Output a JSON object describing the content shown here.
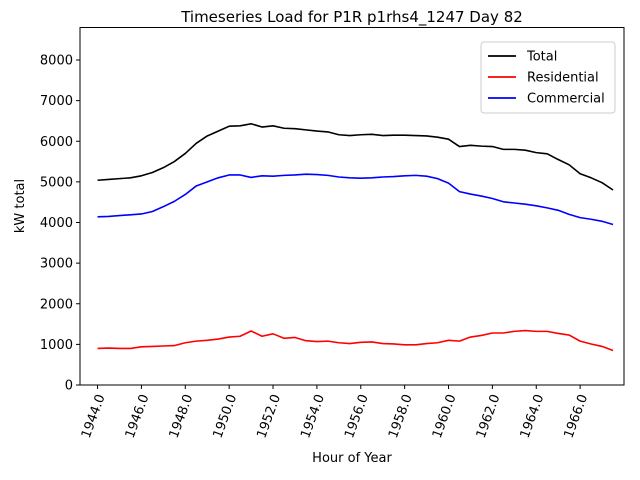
{
  "chart_data": {
    "type": "line",
    "title": "Timeseries Load for P1R p1rhs4_1247  Day 82",
    "xlabel": "Hour of Year",
    "ylabel": "kW total",
    "xlim": [
      1943.2,
      1968.0
    ],
    "ylim": [
      0,
      8800
    ],
    "xticks": [
      1944,
      1946,
      1948,
      1950,
      1952,
      1954,
      1956,
      1958,
      1960,
      1962,
      1964,
      1966
    ],
    "xtick_labels": [
      "1944.0",
      "1946.0",
      "1948.0",
      "1950.0",
      "1952.0",
      "1954.0",
      "1956.0",
      "1958.0",
      "1960.0",
      "1962.0",
      "1964.0",
      "1966.0"
    ],
    "yticks": [
      0,
      1000,
      2000,
      3000,
      4000,
      5000,
      6000,
      7000,
      8000
    ],
    "ytick_labels": [
      "0",
      "1000",
      "2000",
      "3000",
      "4000",
      "5000",
      "6000",
      "7000",
      "8000"
    ],
    "legend_position": "top-right",
    "series": [
      {
        "name": "Total",
        "color": "#000000",
        "x": [
          1944.0,
          1944.5,
          1945.0,
          1945.5,
          1946.0,
          1946.5,
          1947.0,
          1947.5,
          1948.0,
          1948.5,
          1949.0,
          1949.5,
          1950.0,
          1950.5,
          1951.0,
          1951.5,
          1952.0,
          1952.5,
          1953.0,
          1953.5,
          1954.0,
          1954.5,
          1955.0,
          1955.5,
          1956.0,
          1956.5,
          1957.0,
          1957.5,
          1958.0,
          1958.5,
          1959.0,
          1959.5,
          1960.0,
          1960.5,
          1961.0,
          1961.5,
          1962.0,
          1962.5,
          1963.0,
          1963.5,
          1964.0,
          1964.5,
          1965.0,
          1965.5,
          1966.0,
          1966.5,
          1967.0,
          1967.5
        ],
        "values": [
          5040,
          5060,
          5080,
          5100,
          5150,
          5230,
          5350,
          5500,
          5700,
          5950,
          6130,
          6250,
          6370,
          6380,
          6430,
          6350,
          6380,
          6320,
          6310,
          6280,
          6250,
          6230,
          6160,
          6140,
          6160,
          6170,
          6140,
          6150,
          6150,
          6140,
          6130,
          6100,
          6050,
          5870,
          5900,
          5880,
          5870,
          5800,
          5800,
          5780,
          5720,
          5690,
          5550,
          5420,
          5200,
          5100,
          4980,
          4800
        ]
      },
      {
        "name": "Residential",
        "color": "#ff0000",
        "x": [
          1944.0,
          1944.5,
          1945.0,
          1945.5,
          1946.0,
          1946.5,
          1947.0,
          1947.5,
          1948.0,
          1948.5,
          1949.0,
          1949.5,
          1950.0,
          1950.5,
          1951.0,
          1951.5,
          1952.0,
          1952.5,
          1953.0,
          1953.5,
          1954.0,
          1954.5,
          1955.0,
          1955.5,
          1956.0,
          1956.5,
          1957.0,
          1957.5,
          1958.0,
          1958.5,
          1959.0,
          1959.5,
          1960.0,
          1960.5,
          1961.0,
          1961.5,
          1962.0,
          1962.5,
          1963.0,
          1963.5,
          1964.0,
          1964.5,
          1965.0,
          1965.5,
          1966.0,
          1966.5,
          1967.0,
          1967.5
        ],
        "values": [
          900,
          910,
          900,
          900,
          940,
          950,
          960,
          970,
          1040,
          1080,
          1100,
          1130,
          1180,
          1200,
          1330,
          1200,
          1260,
          1150,
          1170,
          1090,
          1070,
          1080,
          1040,
          1020,
          1050,
          1060,
          1020,
          1010,
          990,
          990,
          1020,
          1040,
          1100,
          1080,
          1180,
          1220,
          1280,
          1280,
          1320,
          1340,
          1320,
          1320,
          1270,
          1230,
          1080,
          1010,
          950,
          850
        ]
      },
      {
        "name": "Commercial",
        "color": "#0000ff",
        "x": [
          1944.0,
          1944.5,
          1945.0,
          1945.5,
          1946.0,
          1946.5,
          1947.0,
          1947.5,
          1948.0,
          1948.5,
          1949.0,
          1949.5,
          1950.0,
          1950.5,
          1951.0,
          1951.5,
          1952.0,
          1952.5,
          1953.0,
          1953.5,
          1954.0,
          1954.5,
          1955.0,
          1955.5,
          1956.0,
          1956.5,
          1957.0,
          1957.5,
          1958.0,
          1958.5,
          1959.0,
          1959.5,
          1960.0,
          1960.5,
          1961.0,
          1961.5,
          1962.0,
          1962.5,
          1963.0,
          1963.5,
          1964.0,
          1964.5,
          1965.0,
          1965.5,
          1966.0,
          1966.5,
          1967.0,
          1967.5
        ],
        "values": [
          4140,
          4150,
          4170,
          4190,
          4210,
          4270,
          4390,
          4520,
          4690,
          4900,
          5000,
          5100,
          5170,
          5170,
          5110,
          5150,
          5140,
          5160,
          5170,
          5190,
          5180,
          5160,
          5120,
          5100,
          5090,
          5100,
          5120,
          5130,
          5150,
          5160,
          5140,
          5080,
          4970,
          4760,
          4700,
          4650,
          4590,
          4510,
          4480,
          4450,
          4410,
          4360,
          4300,
          4200,
          4120,
          4080,
          4030,
          3950
        ]
      }
    ]
  }
}
